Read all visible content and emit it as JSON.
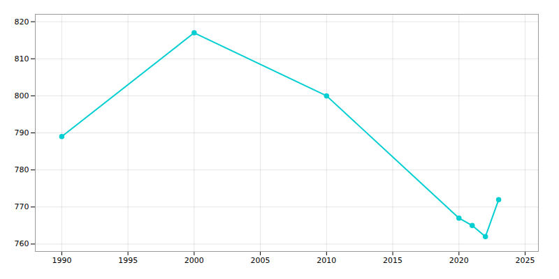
{
  "chart_data": {
    "type": "line",
    "x": [
      1990,
      2000,
      2010,
      2020,
      2021,
      2022,
      2023
    ],
    "values": [
      789,
      817,
      800,
      767,
      765,
      762,
      772
    ],
    "color": "#00CED1",
    "marker": "circle",
    "xlim": [
      1988,
      2026
    ],
    "ylim": [
      758,
      822
    ],
    "xticks": [
      1990,
      1995,
      2000,
      2005,
      2010,
      2015,
      2020,
      2025
    ],
    "yticks": [
      760,
      770,
      780,
      790,
      800,
      810,
      820
    ],
    "grid": true
  }
}
